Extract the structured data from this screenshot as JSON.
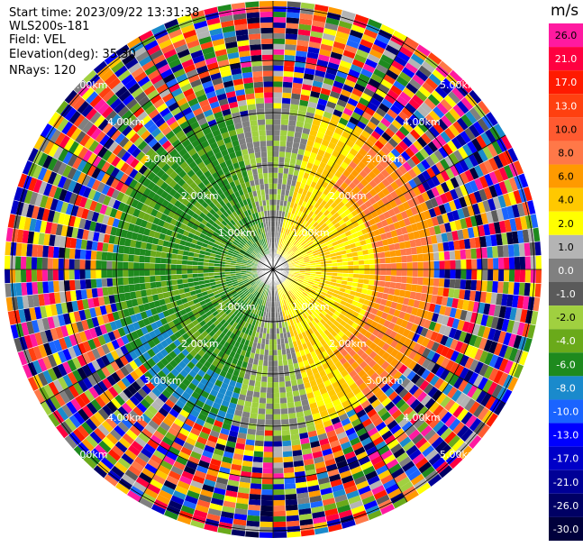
{
  "info": {
    "start_time": "Start time: 2023/09/22 13:31:38",
    "instrument": "WLS200s-181",
    "field": "Field: VEL",
    "elevation": "Elevation(deg): 35.30",
    "nrays": "NRays: 120"
  },
  "colorbar": {
    "unit": "m/s",
    "levels": [
      {
        "label": "26.0",
        "color": "#ff1aa0"
      },
      {
        "label": "21.0",
        "color": "#ff0040"
      },
      {
        "label": "17.0",
        "color": "#ff1a00"
      },
      {
        "label": "13.0",
        "color": "#ff4010"
      },
      {
        "label": "10.0",
        "color": "#ff5a30"
      },
      {
        "label": "8.0",
        "color": "#ff7848"
      },
      {
        "label": "6.0",
        "color": "#ff9a00"
      },
      {
        "label": "4.0",
        "color": "#ffc800"
      },
      {
        "label": "2.0",
        "color": "#ffff00"
      },
      {
        "label": "1.0",
        "color": "#b4b4b4"
      },
      {
        "label": "0.0",
        "color": "#808080"
      },
      {
        "label": "-1.0",
        "color": "#5a5a5a"
      },
      {
        "label": "-2.0",
        "color": "#a0d040"
      },
      {
        "label": "-4.0",
        "color": "#6aaa1a"
      },
      {
        "label": "-6.0",
        "color": "#1e8a1e"
      },
      {
        "label": "-8.0",
        "color": "#1a8acc"
      },
      {
        "label": "-10.0",
        "color": "#1a64ff"
      },
      {
        "label": "-13.0",
        "color": "#0000ff"
      },
      {
        "label": "-17.0",
        "color": "#0000c8"
      },
      {
        "label": "-21.0",
        "color": "#000096"
      },
      {
        "label": "-26.0",
        "color": "#000064"
      },
      {
        "label": "-30.0",
        "color": "#00003c"
      }
    ]
  },
  "chart_data": {
    "type": "heatmap",
    "projection": "polar-ppi",
    "field": "VEL",
    "units": "m/s",
    "vmin": -30.0,
    "vmax": 26.0,
    "range_ring_labels": [
      "1.00km",
      "2.00km",
      "3.00km",
      "4.00km",
      "5.00km"
    ],
    "rays": 120,
    "pattern_description": "negative (green) velocities to the west, positive (yellow/orange) to the east within ~2.5km; noisy random colors beyond ~3km"
  }
}
